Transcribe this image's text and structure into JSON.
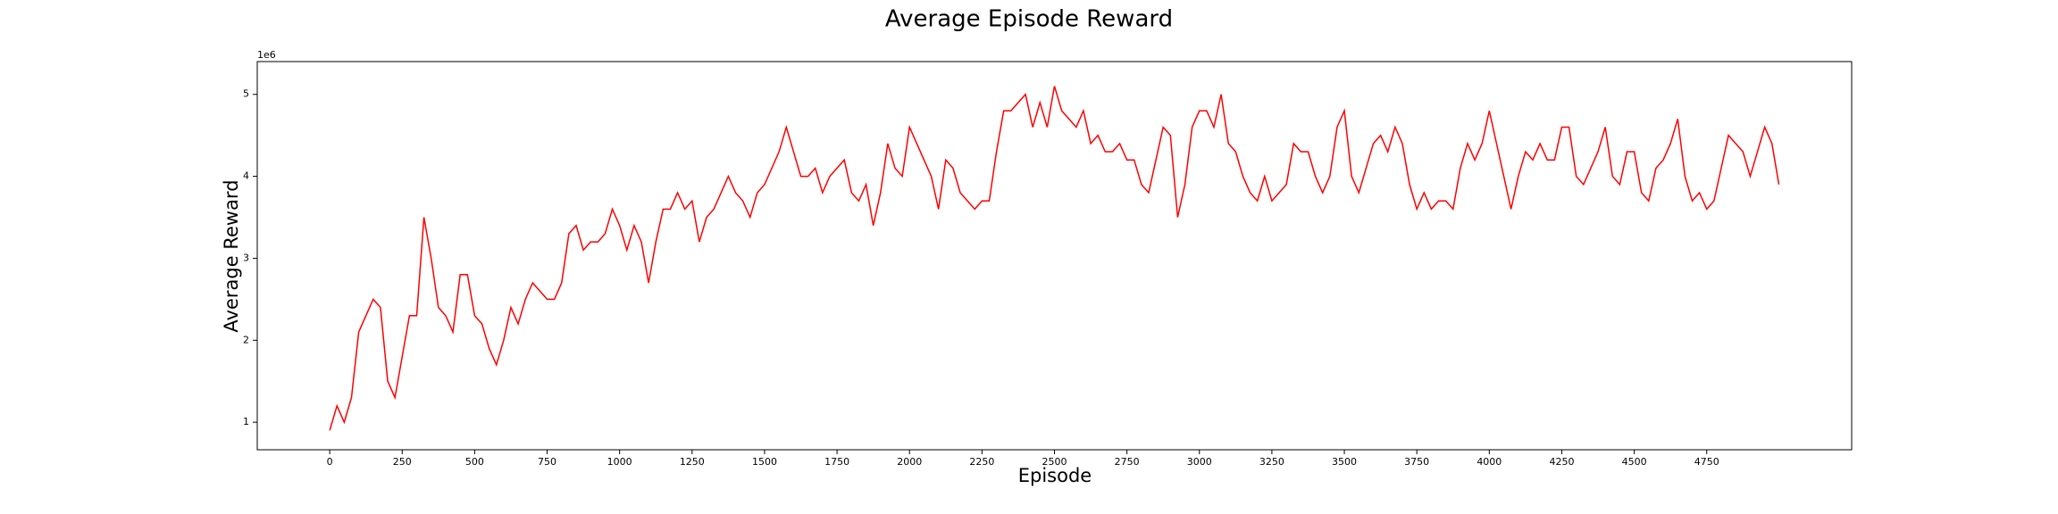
{
  "chart_data": {
    "type": "line",
    "title": "Average Episode Reward",
    "x_label": "Episode",
    "y_label": "Average Reward",
    "y_offset_label": "1e6",
    "x": [
      0,
      25,
      50,
      75,
      100,
      125,
      150,
      175,
      200,
      225,
      250,
      275,
      300,
      325,
      350,
      375,
      400,
      425,
      450,
      475,
      500,
      525,
      550,
      575,
      600,
      625,
      650,
      675,
      700,
      725,
      750,
      775,
      800,
      825,
      850,
      875,
      900,
      925,
      950,
      975,
      1000,
      1025,
      1050,
      1075,
      1100,
      1125,
      1150,
      1175,
      1200,
      1225,
      1250,
      1275,
      1300,
      1325,
      1350,
      1375,
      1400,
      1425,
      1450,
      1475,
      1500,
      1525,
      1550,
      1575,
      1600,
      1625,
      1650,
      1675,
      1700,
      1725,
      1750,
      1775,
      1800,
      1825,
      1850,
      1875,
      1900,
      1925,
      1950,
      1975,
      2000,
      2025,
      2050,
      2075,
      2100,
      2125,
      2150,
      2175,
      2200,
      2225,
      2250,
      2275,
      2300,
      2325,
      2350,
      2375,
      2400,
      2425,
      2450,
      2475,
      2500,
      2525,
      2550,
      2575,
      2600,
      2625,
      2650,
      2675,
      2700,
      2725,
      2750,
      2775,
      2800,
      2825,
      2850,
      2875,
      2900,
      2925,
      2950,
      2975,
      3000,
      3025,
      3050,
      3075,
      3100,
      3125,
      3150,
      3175,
      3200,
      3225,
      3250,
      3275,
      3300,
      3325,
      3350,
      3375,
      3400,
      3425,
      3450,
      3475,
      3500,
      3525,
      3550,
      3575,
      3600,
      3625,
      3650,
      3675,
      3700,
      3725,
      3750,
      3775,
      3800,
      3825,
      3850,
      3875,
      3900,
      3925,
      3950,
      3975,
      4000,
      4025,
      4050,
      4075,
      4100,
      4125,
      4150,
      4175,
      4200,
      4225,
      4250,
      4275,
      4300,
      4325,
      4350,
      4375,
      4400,
      4425,
      4450,
      4475,
      4500,
      4525,
      4550,
      4575,
      4600,
      4625,
      4650,
      4675,
      4700,
      4725,
      4750,
      4775,
      4800,
      4825,
      4850,
      4875,
      4900,
      4925,
      4950,
      4975,
      4999
    ],
    "series": [
      {
        "name": "Average Reward",
        "color": "#ff0000",
        "values": [
          0.9,
          1.2,
          1.0,
          1.3,
          2.1,
          2.3,
          2.5,
          2.4,
          1.5,
          1.3,
          1.8,
          2.3,
          2.3,
          3.5,
          3.0,
          2.4,
          2.3,
          2.1,
          2.8,
          2.8,
          2.3,
          2.2,
          1.9,
          1.7,
          2.0,
          2.4,
          2.2,
          2.5,
          2.7,
          2.6,
          2.5,
          2.5,
          2.7,
          3.3,
          3.4,
          3.1,
          3.2,
          3.2,
          3.3,
          3.6,
          3.4,
          3.1,
          3.4,
          3.2,
          2.7,
          3.2,
          3.6,
          3.6,
          3.8,
          3.6,
          3.7,
          3.2,
          3.5,
          3.6,
          3.8,
          4.0,
          3.8,
          3.7,
          3.5,
          3.8,
          3.9,
          4.1,
          4.3,
          4.6,
          4.3,
          4.0,
          4.0,
          4.1,
          3.8,
          4.0,
          4.1,
          4.2,
          3.8,
          3.7,
          3.9,
          3.4,
          3.8,
          4.4,
          4.1,
          4.0,
          4.6,
          4.4,
          4.2,
          4.0,
          3.6,
          4.2,
          4.1,
          3.8,
          3.7,
          3.6,
          3.7,
          3.7,
          4.3,
          4.8,
          4.8,
          4.9,
          5.0,
          4.6,
          4.9,
          4.6,
          5.1,
          4.8,
          4.7,
          4.6,
          4.8,
          4.4,
          4.5,
          4.3,
          4.3,
          4.4,
          4.2,
          4.2,
          3.9,
          3.8,
          4.2,
          4.6,
          4.5,
          3.5,
          3.9,
          4.6,
          4.8,
          4.8,
          4.6,
          5.0,
          4.4,
          4.3,
          4.0,
          3.8,
          3.7,
          4.0,
          3.7,
          3.8,
          3.9,
          4.4,
          4.3,
          4.3,
          4.0,
          3.8,
          4.0,
          4.6,
          4.8,
          4.0,
          3.8,
          4.1,
          4.4,
          4.5,
          4.3,
          4.6,
          4.4,
          3.9,
          3.6,
          3.8,
          3.6,
          3.7,
          3.7,
          3.6,
          4.1,
          4.4,
          4.2,
          4.4,
          4.8,
          4.4,
          4.0,
          3.6,
          4.0,
          4.3,
          4.2,
          4.4,
          4.2,
          4.2,
          4.6,
          4.6,
          4.0,
          3.9,
          4.1,
          4.3,
          4.6,
          4.0,
          3.9,
          4.3,
          4.3,
          3.8,
          3.7,
          4.1,
          4.2,
          4.4,
          4.7,
          4.0,
          3.7,
          3.8,
          3.6,
          3.7,
          4.1,
          4.5,
          4.4,
          4.3,
          4.0,
          4.3,
          4.6,
          4.4,
          3.9
        ]
      }
    ],
    "xlim": [
      -250,
      5250
    ],
    "ylim": [
      0.664,
      5.4
    ],
    "xticks": [
      0,
      250,
      500,
      750,
      1000,
      1250,
      1500,
      1750,
      2000,
      2250,
      2500,
      2750,
      3000,
      3250,
      3500,
      3750,
      4000,
      4250,
      4500,
      4750
    ],
    "yticks": [
      1,
      2,
      3,
      4,
      5
    ]
  }
}
